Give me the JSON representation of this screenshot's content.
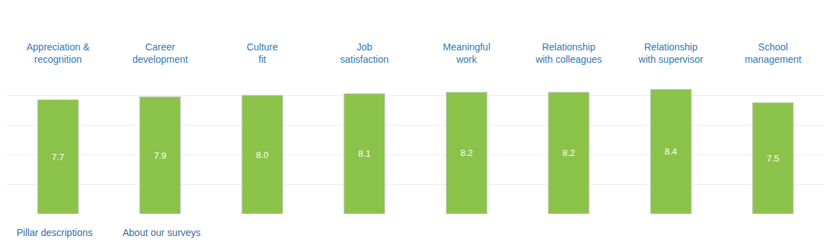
{
  "chart_data": {
    "type": "bar",
    "categories": [
      "Appreciation &\nrecognition",
      "Career\ndevelopment",
      "Culture\nfit",
      "Job\nsatisfaction",
      "Meaningful\nwork",
      "Relationship\nwith colleagues",
      "Relationship\nwith supervisor",
      "School\nmanagement"
    ],
    "values": [
      7.7,
      7.9,
      8.0,
      8.1,
      8.2,
      8.2,
      8.4,
      7.5
    ],
    "value_labels": [
      "7.7",
      "7.9",
      "8.0",
      "8.1",
      "8.2",
      "8.2",
      "8.4",
      "7.5"
    ],
    "color": "#8bc34a",
    "ylim": [
      0,
      10
    ],
    "yticks": [
      0,
      2,
      4,
      6,
      8,
      10
    ],
    "grid": true,
    "data_labels": true,
    "tick_labels": "x",
    "annotations": [
      "Pillar descriptions",
      "About our surveys"
    ]
  }
}
